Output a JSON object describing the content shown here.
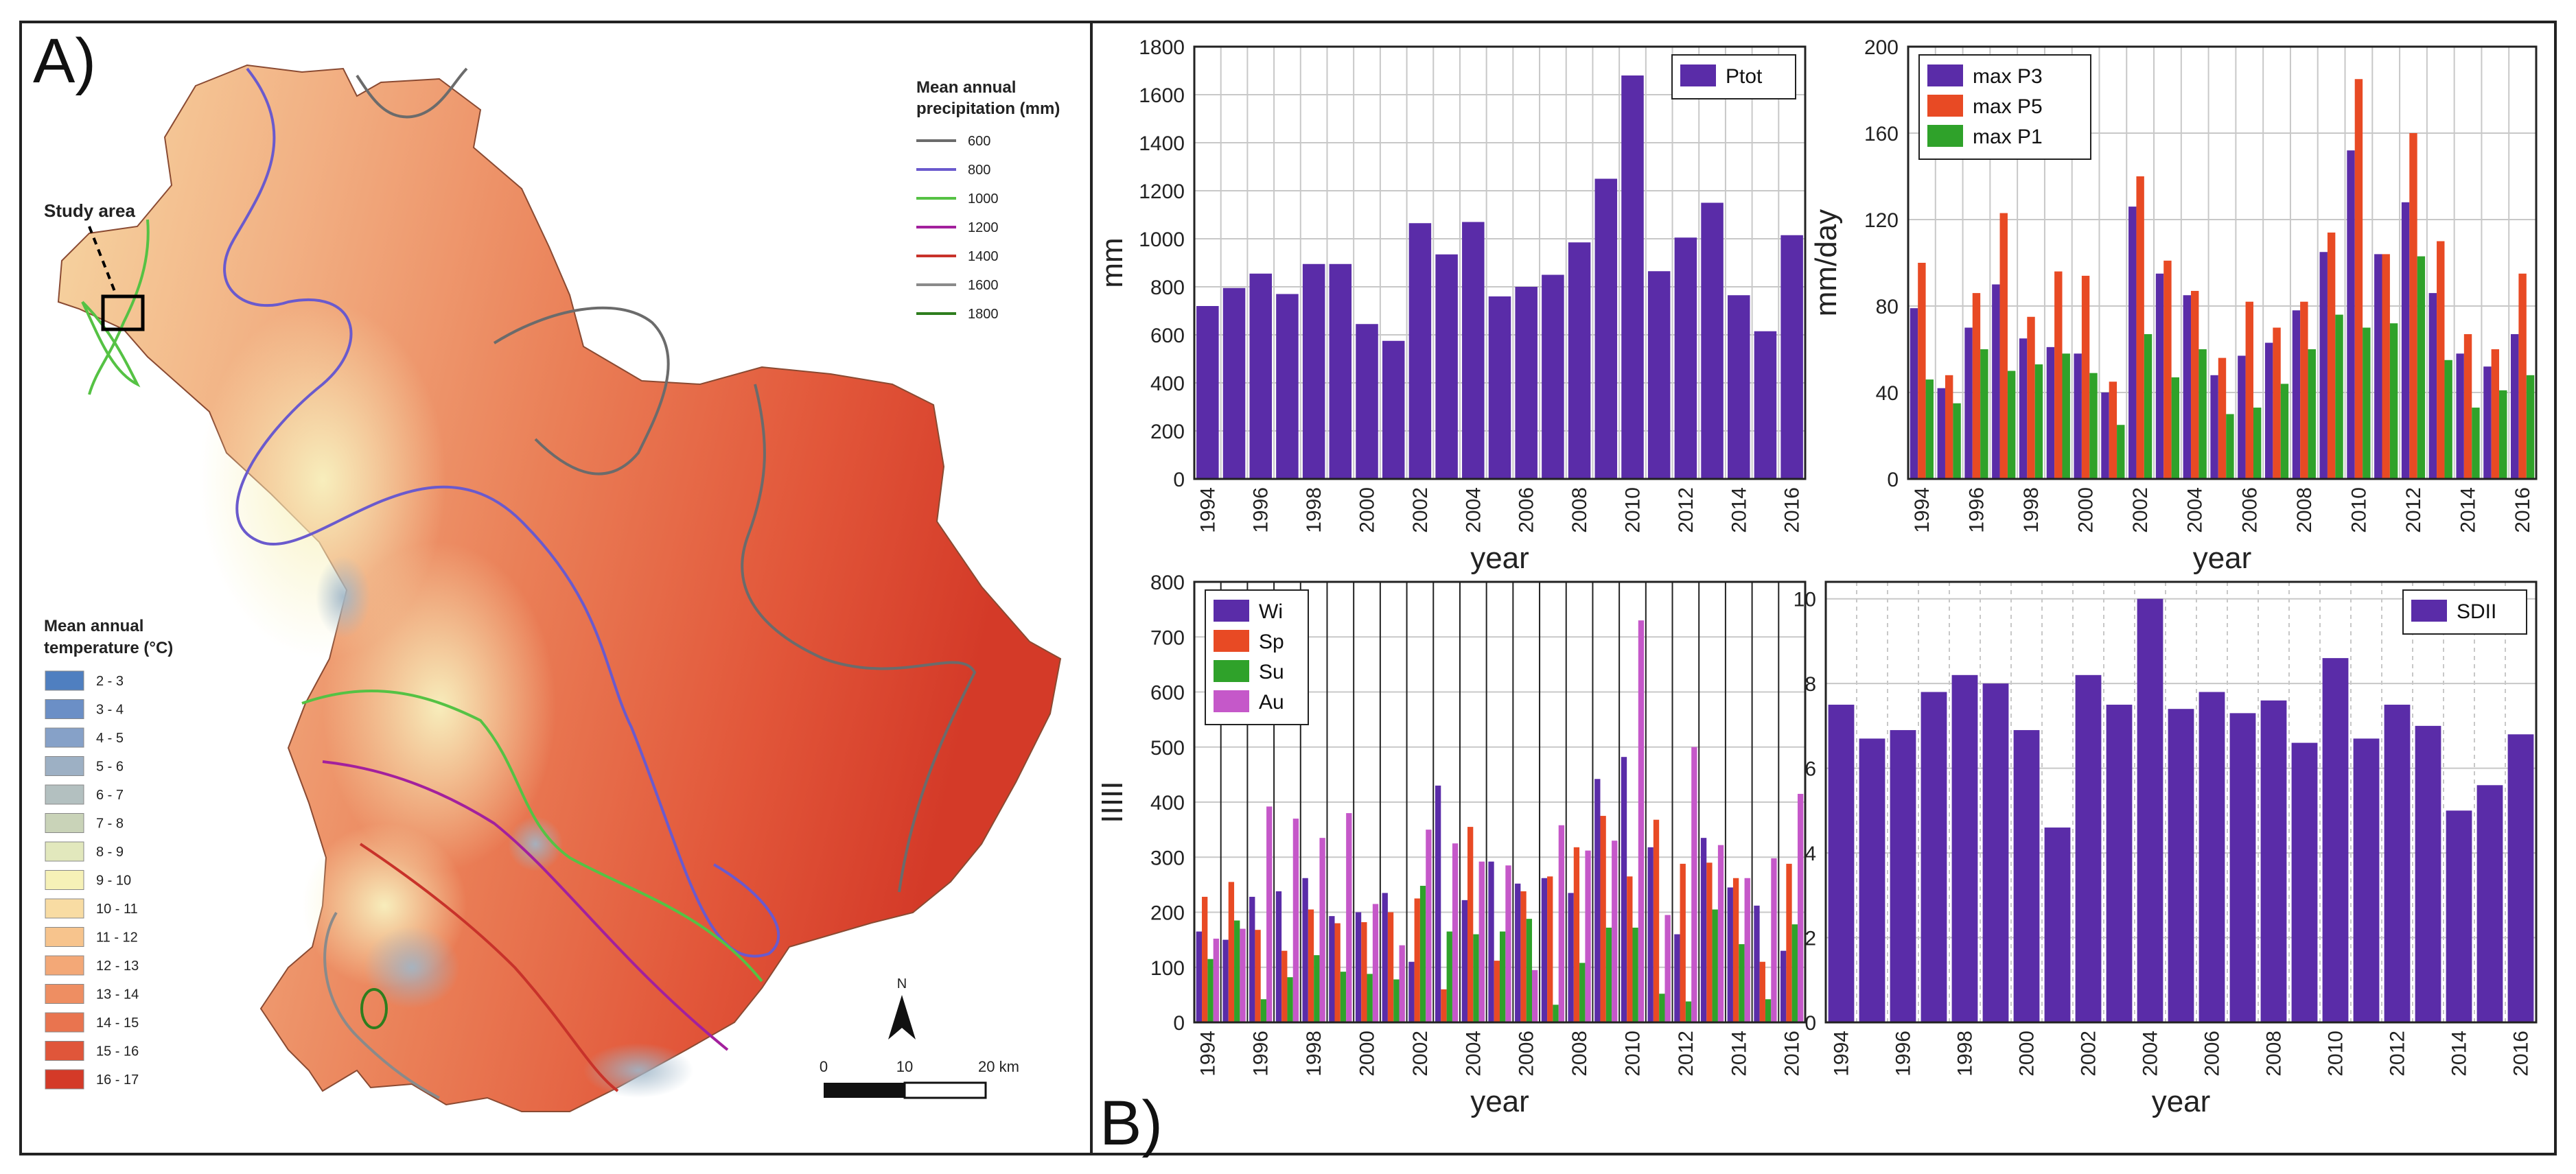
{
  "panel_labels": {
    "a": "A)",
    "b": "B)"
  },
  "map": {
    "study_area_label": "Study area",
    "precip_title_1": "Mean annual",
    "precip_title_2": "precipitation (mm)",
    "precip_legend": [
      {
        "label": "600",
        "color": "#6b6b6b"
      },
      {
        "label": "800",
        "color": "#6a5acd"
      },
      {
        "label": "1000",
        "color": "#55c244"
      },
      {
        "label": "1200",
        "color": "#a3209d"
      },
      {
        "label": "1400",
        "color": "#c8322a"
      },
      {
        "label": "1600",
        "color": "#8a8a8a"
      },
      {
        "label": "1800",
        "color": "#2e7d1e"
      }
    ],
    "temp_title_1": "Mean annual",
    "temp_title_2": "temperature (°C)",
    "temp_legend": [
      {
        "label": "2 - 3",
        "color": "#4f7fc0"
      },
      {
        "label": "3 - 4",
        "color": "#6b8fc6"
      },
      {
        "label": "4 - 5",
        "color": "#86a1c8"
      },
      {
        "label": "5 - 6",
        "color": "#9db0c4"
      },
      {
        "label": "6 - 7",
        "color": "#b3c0c0"
      },
      {
        "label": "7 - 8",
        "color": "#c9d3b8"
      },
      {
        "label": "8 - 9",
        "color": "#e2e8bd"
      },
      {
        "label": "9 - 10",
        "color": "#f6f1b7"
      },
      {
        "label": "10 - 11",
        "color": "#f8dca3"
      },
      {
        "label": "11 - 12",
        "color": "#f7c48d"
      },
      {
        "label": "12 - 13",
        "color": "#f3a877"
      },
      {
        "label": "13 - 14",
        "color": "#ee8e62"
      },
      {
        "label": "14 - 15",
        "color": "#e9744f"
      },
      {
        "label": "15 - 16",
        "color": "#e0563a"
      },
      {
        "label": "16 - 17",
        "color": "#d43a28"
      }
    ],
    "north_label": "N",
    "scale_labels": [
      "0",
      "10",
      "20 km"
    ]
  },
  "colors": {
    "purple": "#5a2ca8",
    "red": "#e84a24",
    "green": "#2fa22a",
    "magenta": "#c558c9",
    "grid": "#c8c8c8",
    "axis": "#222222"
  },
  "chart_data": [
    {
      "type": "bar",
      "title": "",
      "xlabel": "year",
      "ylabel": "mm",
      "ylim": [
        0,
        1800
      ],
      "yticks": [
        0,
        200,
        400,
        600,
        800,
        1000,
        1200,
        1400,
        1600,
        1800
      ],
      "categories": [
        "1994",
        "1995",
        "1996",
        "1997",
        "1998",
        "1999",
        "2000",
        "2001",
        "2002",
        "2003",
        "2004",
        "2005",
        "2006",
        "2007",
        "2008",
        "2009",
        "2010",
        "2011",
        "2012",
        "2013",
        "2014",
        "2015",
        "2016"
      ],
      "xtick_labels": [
        "1994",
        "1996",
        "1998",
        "2000",
        "2002",
        "2004",
        "2006",
        "2008",
        "2010",
        "2012",
        "2014",
        "2016"
      ],
      "legend_position": "top-right",
      "series": [
        {
          "name": "Ptot",
          "color": "#5a2ca8",
          "values": [
            720,
            795,
            855,
            770,
            895,
            895,
            645,
            575,
            1065,
            935,
            1070,
            760,
            800,
            850,
            985,
            1250,
            1680,
            865,
            1005,
            1150,
            765,
            615,
            1015
          ]
        }
      ]
    },
    {
      "type": "bar",
      "title": "",
      "xlabel": "year",
      "ylabel": "mm/day",
      "ylim": [
        0,
        200
      ],
      "yticks": [
        0,
        40,
        80,
        120,
        160,
        200
      ],
      "categories": [
        "1994",
        "1995",
        "1996",
        "1997",
        "1998",
        "1999",
        "2000",
        "2001",
        "2002",
        "2003",
        "2004",
        "2005",
        "2006",
        "2007",
        "2008",
        "2009",
        "2010",
        "2011",
        "2012",
        "2013",
        "2014",
        "2015",
        "2016"
      ],
      "xtick_labels": [
        "1994",
        "1996",
        "1998",
        "2000",
        "2002",
        "2004",
        "2006",
        "2008",
        "2010",
        "2012",
        "2014",
        "2016"
      ],
      "legend_position": "top-left",
      "series": [
        {
          "name": "max P3",
          "color": "#5a2ca8",
          "values": [
            79,
            42,
            70,
            90,
            65,
            61,
            58,
            40,
            126,
            95,
            85,
            48,
            57,
            63,
            78,
            105,
            152,
            104,
            128,
            86,
            58,
            52,
            67
          ]
        },
        {
          "name": "max P5",
          "color": "#e84a24",
          "values": [
            100,
            48,
            86,
            123,
            75,
            96,
            94,
            45,
            140,
            101,
            87,
            56,
            82,
            70,
            82,
            114,
            185,
            104,
            160,
            110,
            67,
            60,
            95
          ]
        },
        {
          "name": "max P1",
          "color": "#2fa22a",
          "values": [
            46,
            35,
            60,
            50,
            53,
            58,
            49,
            25,
            67,
            47,
            60,
            30,
            33,
            44,
            60,
            76,
            70,
            72,
            103,
            55,
            33,
            41,
            48
          ]
        }
      ]
    },
    {
      "type": "bar",
      "title": "",
      "xlabel": "year",
      "ylabel": "IIIII",
      "ylim": [
        0,
        800
      ],
      "yticks": [
        0,
        100,
        200,
        300,
        400,
        500,
        600,
        700,
        800
      ],
      "categories": [
        "1994",
        "1995",
        "1996",
        "1997",
        "1998",
        "1999",
        "2000",
        "2001",
        "2002",
        "2003",
        "2004",
        "2005",
        "2006",
        "2007",
        "2008",
        "2009",
        "2010",
        "2011",
        "2012",
        "2013",
        "2014",
        "2015",
        "2016"
      ],
      "xtick_labels": [
        "1994",
        "1996",
        "1998",
        "2000",
        "2002",
        "2004",
        "2006",
        "2008",
        "2010",
        "2012",
        "2014",
        "2016"
      ],
      "legend_position": "top-left",
      "series": [
        {
          "name": "Wi",
          "color": "#5a2ca8",
          "values": [
            165,
            150,
            228,
            238,
            262,
            193,
            200,
            235,
            110,
            430,
            222,
            292,
            252,
            262,
            235,
            442,
            482,
            318,
            160,
            335,
            245,
            212,
            130
          ]
        },
        {
          "name": "Sp",
          "color": "#e84a24",
          "values": [
            228,
            255,
            168,
            130,
            205,
            180,
            182,
            200,
            225,
            60,
            355,
            112,
            238,
            265,
            318,
            375,
            265,
            368,
            288,
            290,
            262,
            110,
            288
          ]
        },
        {
          "name": "Su",
          "color": "#2fa22a",
          "values": [
            115,
            185,
            42,
            82,
            122,
            92,
            88,
            78,
            248,
            165,
            160,
            165,
            188,
            32,
            108,
            172,
            172,
            52,
            38,
            205,
            142,
            42,
            178
          ]
        },
        {
          "name": "Au",
          "color": "#c558c9",
          "values": [
            152,
            170,
            392,
            370,
            335,
            380,
            215,
            140,
            350,
            325,
            292,
            285,
            95,
            358,
            312,
            330,
            730,
            195,
            500,
            322,
            262,
            298,
            415
          ]
        }
      ]
    },
    {
      "type": "bar",
      "title": "",
      "xlabel": "year",
      "ylabel": "",
      "ylim": [
        0,
        10.4
      ],
      "yticks": [
        0,
        2,
        4,
        6,
        8,
        10
      ],
      "categories": [
        "1994",
        "1995",
        "1996",
        "1997",
        "1998",
        "1999",
        "2000",
        "2001",
        "2002",
        "2003",
        "2004",
        "2005",
        "2006",
        "2007",
        "2008",
        "2009",
        "2010",
        "2011",
        "2012",
        "2013",
        "2014",
        "2015",
        "2016"
      ],
      "xtick_labels": [
        "1994",
        "1996",
        "1998",
        "2000",
        "2002",
        "2004",
        "2006",
        "2008",
        "2010",
        "2012",
        "2014",
        "2016"
      ],
      "legend_position": "top-right",
      "series": [
        {
          "name": "SDII",
          "color": "#5a2ca8",
          "values": [
            7.5,
            6.7,
            6.9,
            7.8,
            8.2,
            8.0,
            6.9,
            4.6,
            8.2,
            7.5,
            10.0,
            7.4,
            7.8,
            7.3,
            7.6,
            6.6,
            8.6,
            6.7,
            7.5,
            7.0,
            5.0,
            5.6,
            6.8
          ]
        }
      ]
    }
  ]
}
